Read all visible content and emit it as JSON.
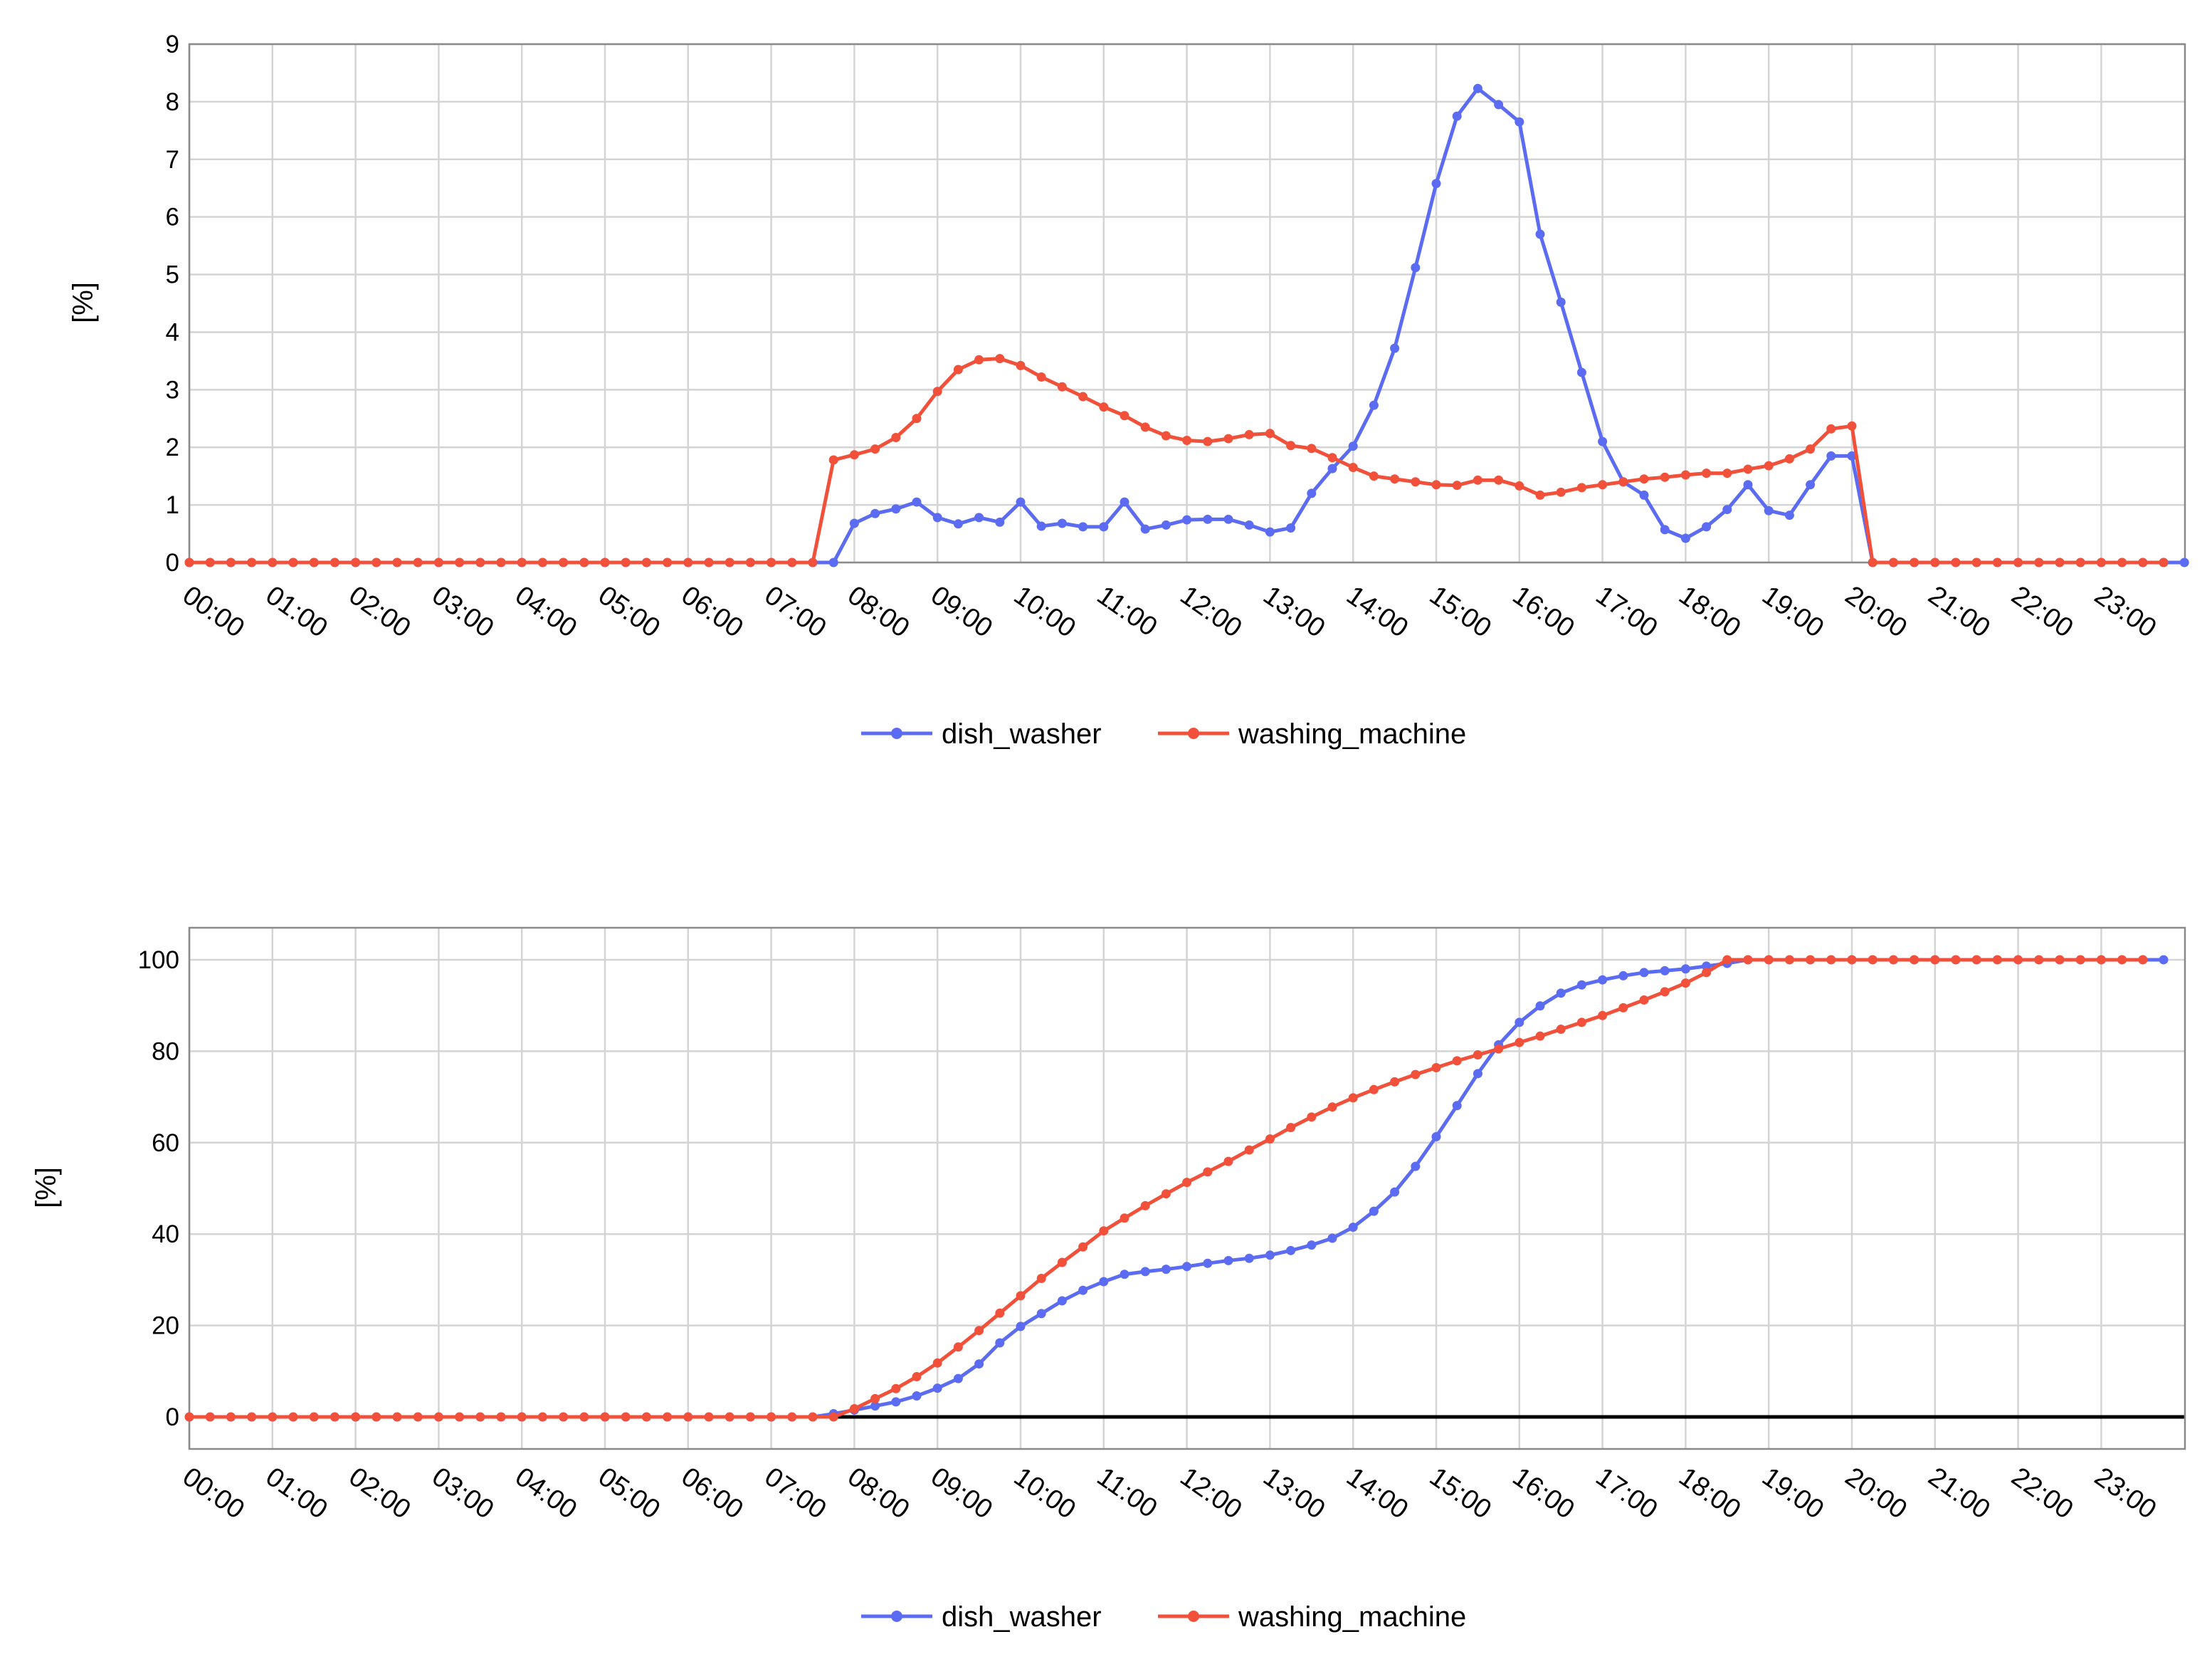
{
  "colors": {
    "dish_washer": "#5b6cf2",
    "washing_machine": "#f1513a",
    "grid": "#d4d4d4",
    "frame": "#8a8a8a",
    "baseline": "#000000"
  },
  "chart_data": [
    {
      "type": "line",
      "title": "",
      "xlabel": "",
      "ylabel": "[%]",
      "ylim": [
        0,
        9
      ],
      "yticks": [
        0,
        1,
        2,
        3,
        4,
        5,
        6,
        7,
        8,
        9
      ],
      "x_tick_labels": [
        "00:00",
        "01:00",
        "02:00",
        "03:00",
        "04:00",
        "05:00",
        "06:00",
        "07:00",
        "08:00",
        "09:00",
        "10:00",
        "11:00",
        "12:00",
        "13:00",
        "14:00",
        "15:00",
        "16:00",
        "17:00",
        "18:00",
        "19:00",
        "20:00",
        "21:00",
        "22:00",
        "23:00"
      ],
      "x_start": "00:00",
      "x_step_minutes": 15,
      "grid": true,
      "legend": "bottom-center",
      "baseline": false,
      "series": [
        {
          "name": "dish_washer",
          "color": "#5b6cf2",
          "values": [
            0,
            0,
            0,
            0,
            0,
            0,
            0,
            0,
            0,
            0,
            0,
            0,
            0,
            0,
            0,
            0,
            0,
            0,
            0,
            0,
            0,
            0,
            0,
            0,
            0,
            0,
            0,
            0,
            0,
            0,
            0,
            0,
            0.68,
            0.85,
            0.93,
            1.05,
            0.78,
            0.67,
            0.78,
            0.7,
            1.05,
            0.63,
            0.68,
            0.62,
            0.62,
            1.05,
            0.58,
            0.65,
            0.74,
            0.75,
            0.75,
            0.65,
            0.53,
            0.6,
            1.2,
            1.63,
            2.02,
            2.73,
            3.72,
            5.12,
            6.58,
            7.75,
            8.23,
            7.95,
            7.65,
            5.7,
            4.52,
            3.3,
            2.1,
            1.4,
            1.17,
            0.57,
            0.42,
            0.62,
            0.92,
            1.35,
            0.9,
            0.82,
            1.35,
            1.85,
            1.85,
            0,
            0,
            0,
            0,
            0,
            0,
            0,
            0,
            0,
            0,
            0,
            0,
            0,
            0,
            0,
            0
          ]
        },
        {
          "name": "washing_machine",
          "color": "#f1513a",
          "values": [
            0,
            0,
            0,
            0,
            0,
            0,
            0,
            0,
            0,
            0,
            0,
            0,
            0,
            0,
            0,
            0,
            0,
            0,
            0,
            0,
            0,
            0,
            0,
            0,
            0,
            0,
            0,
            0,
            0,
            0,
            0,
            1.78,
            1.87,
            1.97,
            2.17,
            2.5,
            2.97,
            3.35,
            3.52,
            3.54,
            3.42,
            3.22,
            3.05,
            2.88,
            2.7,
            2.55,
            2.35,
            2.2,
            2.12,
            2.1,
            2.15,
            2.22,
            2.24,
            2.03,
            1.98,
            1.82,
            1.65,
            1.5,
            1.45,
            1.4,
            1.35,
            1.34,
            1.43,
            1.43,
            1.33,
            1.17,
            1.22,
            1.3,
            1.35,
            1.4,
            1.45,
            1.48,
            1.52,
            1.55,
            1.55,
            1.62,
            1.68,
            1.8,
            1.97,
            2.32,
            2.37,
            0,
            0,
            0,
            0,
            0,
            0,
            0,
            0,
            0,
            0,
            0,
            0,
            0,
            0,
            0
          ]
        }
      ]
    },
    {
      "type": "line",
      "title": "",
      "xlabel": "",
      "ylabel": "[%]",
      "ylim": [
        -7,
        107
      ],
      "yticks": [
        0,
        20,
        40,
        60,
        80,
        100
      ],
      "x_tick_labels": [
        "00:00",
        "01:00",
        "02:00",
        "03:00",
        "04:00",
        "05:00",
        "06:00",
        "07:00",
        "08:00",
        "09:00",
        "10:00",
        "11:00",
        "12:00",
        "13:00",
        "14:00",
        "15:00",
        "16:00",
        "17:00",
        "18:00",
        "19:00",
        "20:00",
        "21:00",
        "22:00",
        "23:00"
      ],
      "x_start": "00:00",
      "x_step_minutes": 15,
      "grid": true,
      "legend": "bottom-center",
      "baseline": true,
      "series": [
        {
          "name": "dish_washer",
          "color": "#5b6cf2",
          "values": [
            0,
            0,
            0,
            0,
            0,
            0,
            0,
            0,
            0,
            0,
            0,
            0,
            0,
            0,
            0,
            0,
            0,
            0,
            0,
            0,
            0,
            0,
            0,
            0,
            0,
            0,
            0,
            0,
            0,
            0,
            0,
            0.7,
            1.5,
            2.4,
            3.3,
            4.6,
            6.3,
            8.4,
            11.6,
            16.2,
            19.8,
            22.6,
            25.4,
            27.7,
            29.6,
            31.2,
            31.8,
            32.3,
            32.9,
            33.6,
            34.2,
            34.7,
            35.4,
            36.4,
            37.6,
            39.1,
            41.5,
            45.0,
            49.2,
            54.8,
            61.3,
            68.1,
            75.1,
            81.4,
            86.3,
            89.9,
            92.7,
            94.5,
            95.6,
            96.5,
            97.2,
            97.6,
            98.0,
            98.6,
            99.2,
            100,
            100,
            100,
            100,
            100,
            100,
            100,
            100,
            100,
            100,
            100,
            100,
            100,
            100,
            100,
            100,
            100,
            100,
            100,
            100,
            100
          ]
        },
        {
          "name": "washing_machine",
          "color": "#f1513a",
          "values": [
            0,
            0,
            0,
            0,
            0,
            0,
            0,
            0,
            0,
            0,
            0,
            0,
            0,
            0,
            0,
            0,
            0,
            0,
            0,
            0,
            0,
            0,
            0,
            0,
            0,
            0,
            0,
            0,
            0,
            0,
            0,
            0,
            1.8,
            4.0,
            6.2,
            8.8,
            11.8,
            15.3,
            18.9,
            22.7,
            26.5,
            30.3,
            33.8,
            37.2,
            40.7,
            43.5,
            46.2,
            48.8,
            51.3,
            53.6,
            55.9,
            58.4,
            60.8,
            63.3,
            65.6,
            67.8,
            69.8,
            71.6,
            73.3,
            74.9,
            76.4,
            77.9,
            79.2,
            80.5,
            81.9,
            83.3,
            84.8,
            86.3,
            87.8,
            89.5,
            91.2,
            93.0,
            94.9,
            97.2,
            100,
            100,
            100,
            100,
            100,
            100,
            100,
            100,
            100,
            100,
            100,
            100,
            100,
            100,
            100,
            100,
            100,
            100,
            100,
            100,
            100
          ]
        }
      ]
    }
  ]
}
